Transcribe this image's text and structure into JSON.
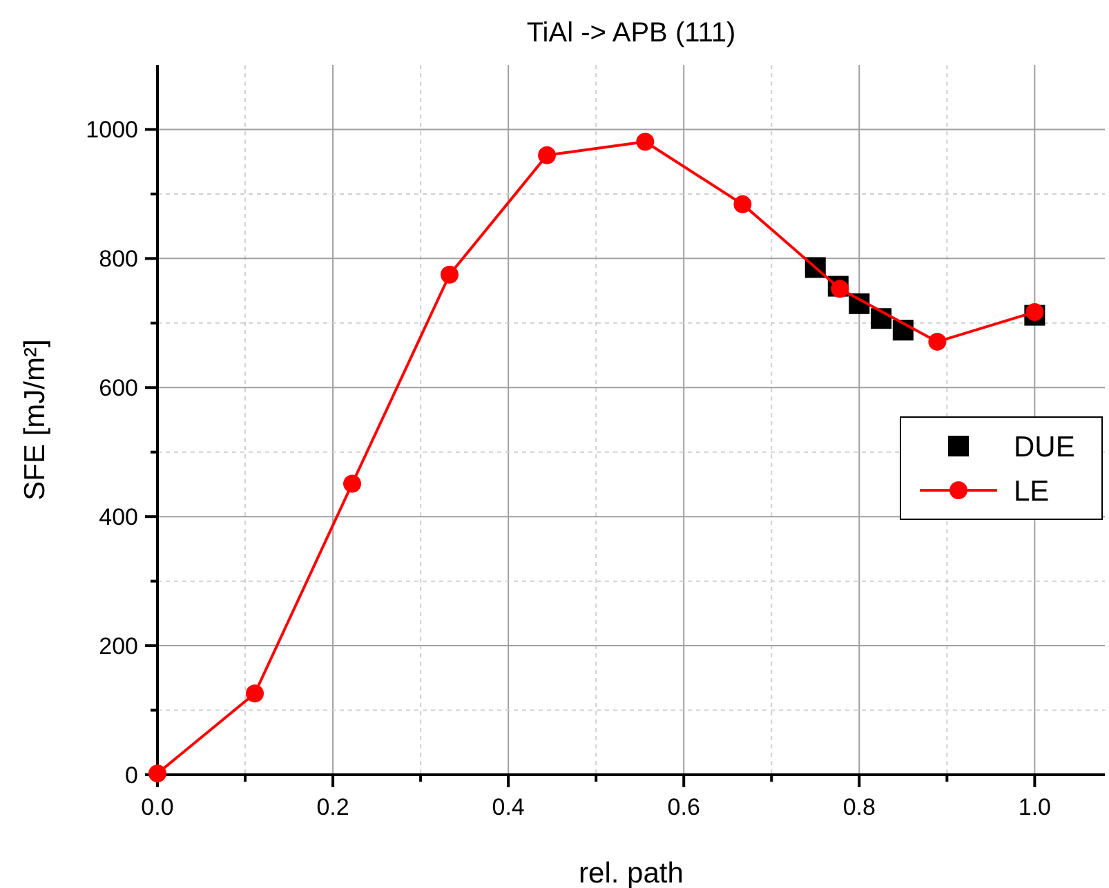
{
  "chart_data": {
    "type": "line",
    "title": "TiAl -> APB (111)",
    "xlabel": "rel. path",
    "ylabel": "SFE [mJ/m²]",
    "xlim": [
      0,
      1.08
    ],
    "ylim": [
      0,
      1100
    ],
    "xticks": [
      {
        "value": 0,
        "label": "0.0"
      },
      {
        "value": 0.1,
        "label": null
      },
      {
        "value": 0.2,
        "label": "0.2"
      },
      {
        "value": 0.3,
        "label": null
      },
      {
        "value": 0.4,
        "label": "0.4"
      },
      {
        "value": 0.5,
        "label": null
      },
      {
        "value": 0.6,
        "label": "0.6"
      },
      {
        "value": 0.7,
        "label": null
      },
      {
        "value": 0.8,
        "label": "0.8"
      },
      {
        "value": 0.9,
        "label": null
      },
      {
        "value": 1.0,
        "label": "1.0"
      }
    ],
    "yticks": [
      0,
      {
        "value": 100,
        "label": null
      },
      200,
      {
        "value": 300,
        "label": null
      },
      400,
      {
        "value": 500,
        "label": null
      },
      600,
      {
        "value": 700,
        "label": null
      },
      800,
      {
        "value": 900,
        "label": null
      },
      1000
    ],
    "grid": true,
    "legend": "right",
    "series": [
      {
        "name": "DUE",
        "type": "scatter",
        "marker": "square",
        "color": "#000000",
        "x": [
          0.75,
          0.776,
          0.8,
          0.825,
          0.85,
          1.0
        ],
        "values": [
          786,
          757,
          730,
          707,
          689,
          712
        ]
      },
      {
        "name": "LE",
        "type": "line",
        "marker": "circle",
        "line_style": "solid",
        "color": "#ff0000",
        "x": [
          0,
          0.111,
          0.222,
          0.333,
          0.444,
          0.556,
          0.667,
          0.778,
          0.889,
          1.0
        ],
        "values": [
          2,
          126,
          451,
          775,
          960,
          981,
          884,
          753,
          671,
          717
        ]
      }
    ]
  }
}
